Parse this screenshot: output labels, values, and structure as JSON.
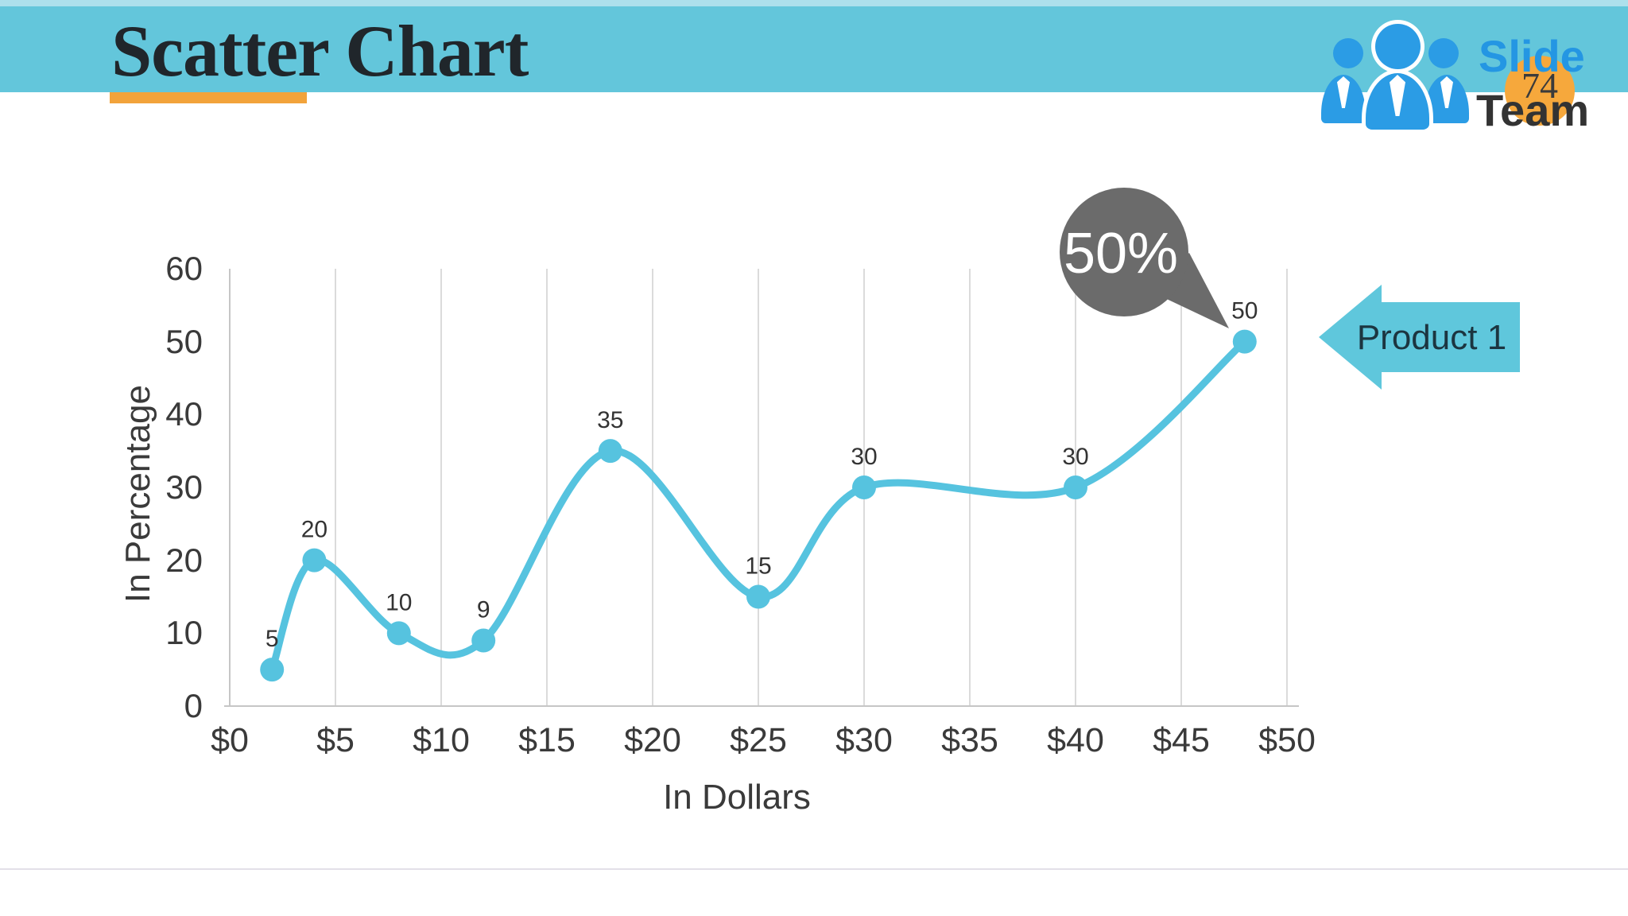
{
  "header": {
    "title": "Scatter Chart"
  },
  "logo": {
    "brand_line1": "Slide",
    "brand_line2": "Team",
    "page_number": "74"
  },
  "chart_data": {
    "type": "scatter",
    "title": "",
    "xlabel": "In Dollars",
    "ylabel": "In Percentage",
    "xlim": [
      0,
      50
    ],
    "ylim": [
      0,
      60
    ],
    "grid": "vertical-only",
    "legend": "none",
    "x_ticks": [
      {
        "value": 0,
        "label": "$0"
      },
      {
        "value": 5,
        "label": "$5"
      },
      {
        "value": 10,
        "label": "$10"
      },
      {
        "value": 15,
        "label": "$15"
      },
      {
        "value": 20,
        "label": "$20"
      },
      {
        "value": 25,
        "label": "$25"
      },
      {
        "value": 30,
        "label": "$30"
      },
      {
        "value": 35,
        "label": "$35"
      },
      {
        "value": 40,
        "label": "$40"
      },
      {
        "value": 45,
        "label": "$45"
      },
      {
        "value": 50,
        "label": "$50"
      }
    ],
    "y_ticks": [
      {
        "value": 0,
        "label": "0"
      },
      {
        "value": 10,
        "label": "10"
      },
      {
        "value": 20,
        "label": "20"
      },
      {
        "value": 30,
        "label": "30"
      },
      {
        "value": 40,
        "label": "40"
      },
      {
        "value": 50,
        "label": "50"
      },
      {
        "value": 60,
        "label": "60"
      }
    ],
    "series": [
      {
        "name": "Product 1",
        "color": "#56c3df",
        "points": [
          {
            "x": 2,
            "y": 5,
            "label": "5"
          },
          {
            "x": 4,
            "y": 20,
            "label": "20"
          },
          {
            "x": 8,
            "y": 10,
            "label": "10"
          },
          {
            "x": 12,
            "y": 9,
            "label": "9"
          },
          {
            "x": 18,
            "y": 35,
            "label": "35"
          },
          {
            "x": 25,
            "y": 15,
            "label": "15"
          },
          {
            "x": 30,
            "y": 30,
            "label": "30"
          },
          {
            "x": 40,
            "y": 30,
            "label": "30"
          },
          {
            "x": 48,
            "y": 50,
            "label": "50"
          }
        ]
      }
    ]
  },
  "annotations": {
    "callout_text": "50%",
    "callout_color": "#6b6b6b",
    "arrow_label": "Product 1",
    "arrow_color": "#5fc7dc"
  },
  "colors": {
    "header_bar": "#63c6db",
    "top_strip": "#ade0ec",
    "title_underline": "#f2a33b",
    "series": "#56c3df",
    "gridline": "#dbdbdb",
    "axis_line": "#c6c6c6",
    "logo_blue": "#2b9ce5",
    "logo_orange": "#f6a83c"
  }
}
